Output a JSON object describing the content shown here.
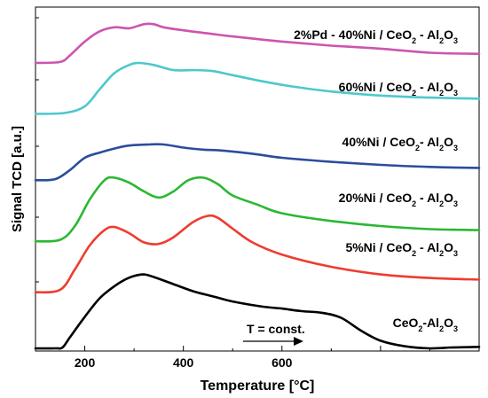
{
  "chart_data": {
    "type": "line",
    "xlabel": "Temperature [°C]",
    "ylabel": "Signal TCD [a.u.]",
    "xlim": [
      100,
      1000
    ],
    "x_ticks": [
      200,
      400,
      600
    ],
    "y_ticks_labeled": false,
    "grid": false,
    "annotation": "T = const.",
    "series": [
      {
        "name": "2%Pd - 40%Ni / CeO2 - Al2O3",
        "color": "#cc55b0",
        "offset": 5.6,
        "points": [
          [
            100,
            0
          ],
          [
            150,
            0.02
          ],
          [
            170,
            0.15
          ],
          [
            200,
            0.42
          ],
          [
            230,
            0.62
          ],
          [
            260,
            0.7
          ],
          [
            290,
            0.68
          ],
          [
            320,
            0.76
          ],
          [
            340,
            0.76
          ],
          [
            360,
            0.7
          ],
          [
            400,
            0.64
          ],
          [
            450,
            0.58
          ],
          [
            500,
            0.52
          ],
          [
            600,
            0.42
          ],
          [
            700,
            0.34
          ],
          [
            800,
            0.28
          ],
          [
            900,
            0.2
          ],
          [
            1000,
            0.18
          ]
        ]
      },
      {
        "name": "60%Ni / CeO2 - Al2O3",
        "color": "#4ec8cc",
        "offset": 4.6,
        "points": [
          [
            100,
            0
          ],
          [
            160,
            0.02
          ],
          [
            200,
            0.15
          ],
          [
            230,
            0.48
          ],
          [
            260,
            0.8
          ],
          [
            290,
            0.96
          ],
          [
            310,
            1.0
          ],
          [
            340,
            0.96
          ],
          [
            380,
            0.86
          ],
          [
            420,
            0.86
          ],
          [
            460,
            0.84
          ],
          [
            500,
            0.76
          ],
          [
            560,
            0.64
          ],
          [
            620,
            0.54
          ],
          [
            700,
            0.44
          ],
          [
            800,
            0.36
          ],
          [
            900,
            0.32
          ],
          [
            1000,
            0.3
          ]
        ]
      },
      {
        "name": "40%Ni / CeO2 - Al2O3",
        "color": "#2b4d9b",
        "offset": 3.3,
        "points": [
          [
            100,
            0
          ],
          [
            140,
            0.02
          ],
          [
            170,
            0.2
          ],
          [
            200,
            0.44
          ],
          [
            230,
            0.54
          ],
          [
            260,
            0.62
          ],
          [
            290,
            0.68
          ],
          [
            330,
            0.7
          ],
          [
            360,
            0.7
          ],
          [
            400,
            0.64
          ],
          [
            440,
            0.6
          ],
          [
            480,
            0.58
          ],
          [
            540,
            0.52
          ],
          [
            600,
            0.44
          ],
          [
            700,
            0.36
          ],
          [
            800,
            0.3
          ],
          [
            900,
            0.26
          ],
          [
            1000,
            0.24
          ]
        ]
      },
      {
        "name": "20%Ni / CeO2 - Al2O3",
        "color": "#2ab832",
        "offset": 2.1,
        "points": [
          [
            100,
            0
          ],
          [
            150,
            0.03
          ],
          [
            180,
            0.3
          ],
          [
            210,
            0.82
          ],
          [
            240,
            1.2
          ],
          [
            260,
            1.25
          ],
          [
            290,
            1.15
          ],
          [
            320,
            0.98
          ],
          [
            350,
            0.86
          ],
          [
            380,
            0.98
          ],
          [
            410,
            1.2
          ],
          [
            440,
            1.25
          ],
          [
            470,
            1.12
          ],
          [
            500,
            0.9
          ],
          [
            550,
            0.72
          ],
          [
            600,
            0.55
          ],
          [
            700,
            0.4
          ],
          [
            800,
            0.3
          ],
          [
            900,
            0.24
          ],
          [
            1000,
            0.22
          ]
        ]
      },
      {
        "name": "5%Ni / CeO2 - Al2O3",
        "color": "#ee3c30",
        "offset": 1.1,
        "points": [
          [
            100,
            0
          ],
          [
            150,
            0.05
          ],
          [
            180,
            0.45
          ],
          [
            210,
            0.92
          ],
          [
            240,
            1.22
          ],
          [
            260,
            1.28
          ],
          [
            290,
            1.16
          ],
          [
            320,
            0.98
          ],
          [
            350,
            0.95
          ],
          [
            380,
            1.08
          ],
          [
            420,
            1.38
          ],
          [
            450,
            1.5
          ],
          [
            470,
            1.46
          ],
          [
            500,
            1.25
          ],
          [
            540,
            0.98
          ],
          [
            600,
            0.74
          ],
          [
            700,
            0.5
          ],
          [
            800,
            0.35
          ],
          [
            900,
            0.28
          ],
          [
            1000,
            0.25
          ]
        ]
      },
      {
        "name": "CeO2-Al2O3",
        "color": "#000000",
        "offset": 0,
        "points": [
          [
            100,
            0
          ],
          [
            140,
            0
          ],
          [
            155,
            0.02
          ],
          [
            170,
            0.22
          ],
          [
            200,
            0.62
          ],
          [
            230,
            0.98
          ],
          [
            260,
            1.22
          ],
          [
            280,
            1.34
          ],
          [
            300,
            1.42
          ],
          [
            320,
            1.45
          ],
          [
            340,
            1.4
          ],
          [
            380,
            1.26
          ],
          [
            420,
            1.12
          ],
          [
            460,
            1.02
          ],
          [
            500,
            0.92
          ],
          [
            560,
            0.82
          ],
          [
            600,
            0.78
          ],
          [
            640,
            0.73
          ],
          [
            680,
            0.7
          ],
          [
            720,
            0.6
          ],
          [
            760,
            0.35
          ],
          [
            800,
            0.15
          ],
          [
            850,
            0.04
          ],
          [
            900,
            0
          ],
          [
            950,
            0.02
          ],
          [
            1000,
            0.03
          ]
        ]
      }
    ]
  },
  "labels": {
    "s0": {
      "a": "2%Pd - 40%Ni / CeO",
      "b": "2",
      "c": " - Al",
      "d": "2",
      "e": "O",
      "f": "3"
    },
    "s1": {
      "a": "60%Ni / CeO",
      "b": "2",
      "c": " - Al",
      "d": "2",
      "e": "O",
      "f": "3"
    },
    "s2": {
      "a": "40%Ni / CeO",
      "b": "2",
      "c": "- Al",
      "d": "2",
      "e": "O",
      "f": "3"
    },
    "s3": {
      "a": "20%Ni / CeO",
      "b": "2",
      "c": " - Al",
      "d": "2",
      "e": "O",
      "f": "3"
    },
    "s4": {
      "a": "5%Ni / CeO",
      "b": "2",
      "c": " - Al",
      "d": "2",
      "e": "O",
      "f": "3"
    },
    "s5": {
      "a": "CeO",
      "b": "2",
      "c": "-Al",
      "d": "2",
      "e": "O",
      "f": "3"
    }
  }
}
